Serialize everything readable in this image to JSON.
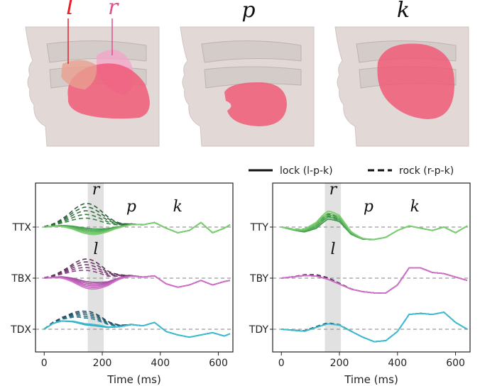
{
  "illustration": {
    "panels": [
      {
        "id": "lr",
        "labels": [
          {
            "text": "l",
            "color": "#e8202a"
          },
          {
            "text": "r",
            "color": "#e0508a"
          }
        ]
      },
      {
        "id": "p",
        "labels": [
          {
            "text": "p",
            "color": "#111111"
          }
        ]
      },
      {
        "id": "k",
        "labels": [
          {
            "text": "k",
            "color": "#111111"
          }
        ]
      }
    ],
    "tongue_color": "#f05a78",
    "face_color": "#e2d9d6"
  },
  "legend": {
    "solid_label": "lock (l-p-k)",
    "dashed_label": "rock (r-p-k)"
  },
  "chart_data": [
    {
      "type": "line",
      "panel": "left",
      "xlabel": "Time (ms)",
      "xlim": [
        -30,
        650
      ],
      "xticks": [
        0,
        200,
        400,
        600
      ],
      "highlight_span": [
        150,
        205
      ],
      "phoneme_labels": [
        {
          "text": "r",
          "x": 178,
          "row": 0,
          "pos": "top"
        },
        {
          "text": "p",
          "x": 300,
          "row": 0,
          "pos": "top"
        },
        {
          "text": "k",
          "x": 460,
          "row": 0,
          "pos": "top"
        },
        {
          "text": "l",
          "x": 178,
          "row": 0,
          "pos": "bottom"
        }
      ],
      "rows": [
        {
          "label": "TTX",
          "color": "#3e9b4a",
          "light": "#7ccf70",
          "dark": "#2e5e3a",
          "x": [
            0,
            30,
            60,
            100,
            140,
            180,
            220,
            260,
            300,
            340,
            380,
            420,
            460,
            500,
            540,
            580,
            620,
            640
          ],
          "solid_peak": [
            -0.15,
            -0.4
          ],
          "dashed_peak": [
            0.3,
            0.95
          ],
          "base": [
            0,
            0.05,
            0.1,
            0.12,
            0.1,
            0.05,
            0.02,
            0.05,
            0.12,
            0.1,
            0.2,
            -0.05,
            -0.25,
            -0.15,
            0.2,
            -0.25,
            -0.05,
            0.1
          ]
        },
        {
          "label": "TBX",
          "color": "#a44ca0",
          "light": "#d070c8",
          "dark": "#5e3358",
          "x": [
            0,
            30,
            60,
            100,
            140,
            180,
            220,
            260,
            300,
            340,
            380,
            420,
            460,
            500,
            540,
            580,
            620,
            640
          ],
          "solid_peak": [
            -0.2,
            -0.5
          ],
          "dashed_peak": [
            0.3,
            0.8
          ],
          "base": [
            0,
            0.05,
            0.1,
            0.1,
            0.05,
            0.0,
            -0.05,
            0.05,
            0.1,
            0.05,
            0.1,
            -0.25,
            -0.4,
            -0.3,
            -0.1,
            -0.3,
            -0.15,
            -0.1
          ]
        },
        {
          "label": "TDX",
          "color": "#2a9bb0",
          "light": "#3bbcd0",
          "dark": "#2a4a5e",
          "x": [
            0,
            30,
            60,
            100,
            140,
            180,
            220,
            260,
            300,
            340,
            380,
            420,
            460,
            500,
            540,
            580,
            620,
            640
          ],
          "solid_peak": [
            0.05,
            0.1
          ],
          "dashed_peak": [
            0.35,
            0.65
          ],
          "base": [
            0,
            0.25,
            0.35,
            0.3,
            0.15,
            0.1,
            0.05,
            0.1,
            0.2,
            0.15,
            0.3,
            -0.1,
            -0.25,
            -0.35,
            -0.25,
            -0.15,
            -0.3,
            -0.2
          ]
        }
      ]
    },
    {
      "type": "line",
      "panel": "right",
      "xlabel": "Time (ms)",
      "xlim": [
        -30,
        650
      ],
      "xticks": [
        0,
        200,
        400,
        600
      ],
      "highlight_span": [
        150,
        205
      ],
      "phoneme_labels": [
        {
          "text": "r",
          "x": 178,
          "row": 0,
          "pos": "top"
        },
        {
          "text": "p",
          "x": 300,
          "row": 0,
          "pos": "top"
        },
        {
          "text": "k",
          "x": 460,
          "row": 0,
          "pos": "top"
        },
        {
          "text": "l",
          "x": 178,
          "row": 0,
          "pos": "bottom"
        }
      ],
      "rows": [
        {
          "label": "TTY",
          "color": "#3e9b4a",
          "light": "#7ccf70",
          "dark": "#2e5e3a",
          "x": [
            0,
            40,
            80,
            120,
            160,
            200,
            240,
            280,
            320,
            360,
            400,
            440,
            480,
            520,
            560,
            600,
            640
          ],
          "solid_peak": [
            0.25,
            0.6
          ],
          "dashed_peak": [
            0.35,
            0.5
          ],
          "base": [
            0,
            -0.15,
            -0.3,
            -0.25,
            0.1,
            0.05,
            -0.4,
            -0.55,
            -0.55,
            -0.45,
            -0.15,
            0.05,
            -0.05,
            -0.15,
            0.0,
            -0.25,
            0.05
          ]
        },
        {
          "label": "TBY",
          "color": "#a44ca0",
          "light": "#d070c8",
          "dark": "#5e3358",
          "x": [
            0,
            40,
            80,
            120,
            160,
            200,
            240,
            280,
            320,
            360,
            400,
            440,
            480,
            520,
            560,
            600,
            640
          ],
          "solid_peak": [
            0.05,
            0.05
          ],
          "dashed_peak": [
            0.08,
            0.12
          ],
          "base": [
            0,
            0.05,
            0.1,
            0.05,
            -0.1,
            -0.3,
            -0.5,
            -0.6,
            -0.65,
            -0.65,
            -0.3,
            0.45,
            0.45,
            0.25,
            0.2,
            0.05,
            -0.1
          ]
        },
        {
          "label": "TDY",
          "color": "#2a9bb0",
          "light": "#3bbcd0",
          "dark": "#2a4a5e",
          "x": [
            0,
            40,
            80,
            120,
            160,
            200,
            240,
            280,
            320,
            360,
            400,
            440,
            480,
            520,
            560,
            600,
            640
          ],
          "solid_peak": [
            0.04,
            0.04
          ],
          "dashed_peak": [
            0.04,
            0.08
          ],
          "base": [
            0,
            -0.05,
            -0.1,
            0.05,
            0.2,
            0.15,
            -0.1,
            -0.35,
            -0.55,
            -0.5,
            -0.1,
            0.65,
            0.7,
            0.65,
            0.75,
            0.3,
            0.0
          ]
        }
      ]
    }
  ]
}
